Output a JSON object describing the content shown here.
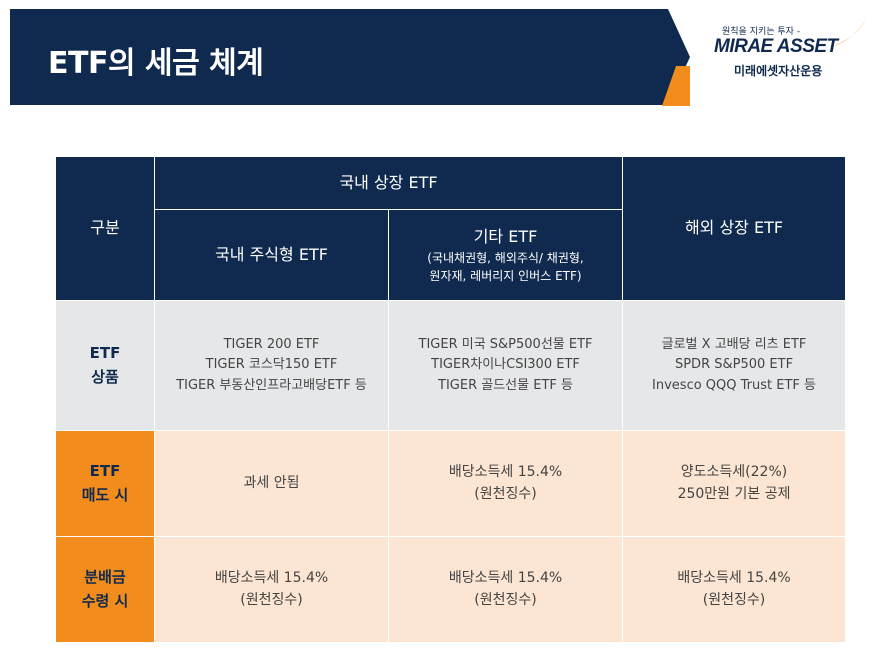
{
  "header": {
    "title": "ETF의 세금 체계"
  },
  "logo": {
    "tagline": "원칙을 지키는 투자 -",
    "brand": "MIRAE ASSET",
    "korean_name": "미래에셋자산운용"
  },
  "colors": {
    "navy": "#0f2a4e",
    "orange": "#f28d1d",
    "light_orange": "#fce5d3",
    "light_gray": "#e6e7e9"
  },
  "table": {
    "corner_label": "구분",
    "group_domestic": "국내 상장 ETF",
    "col_domestic_equity": "국내 주식형 ETF",
    "col_other": "기타 ETF",
    "col_other_note_1": "(국내채권형, 해외주식/ 채권형,",
    "col_other_note_2": "원자재, 레버리지 인버스 ETF)",
    "col_overseas": "해외 상장 ETF",
    "rows": [
      {
        "label_1": "ETF",
        "label_2": "상품",
        "domestic_equity": [
          "TIGER 200 ETF",
          "TIGER 코스닥150 ETF",
          "TIGER 부동산인프라고배당ETF 등"
        ],
        "other": [
          "TIGER 미국 S&P500선물 ETF",
          "TIGER차이나CSI300 ETF",
          "TIGER 골드선물 ETF 등"
        ],
        "overseas": [
          "글로벌 X 고배당 리츠 ETF",
          "SPDR S&P500 ETF",
          "Invesco QQQ Trust ETF 등"
        ]
      },
      {
        "label_1": "ETF",
        "label_2": "매도 시",
        "domestic_equity": [
          "과세 안됨"
        ],
        "other": [
          "배당소득세 15.4%",
          "(원천징수)"
        ],
        "overseas": [
          "양도소득세(22%)",
          "250만원 기본 공제"
        ]
      },
      {
        "label_1": "분배금",
        "label_2": "수령 시",
        "domestic_equity": [
          "배당소득세 15.4%",
          "(원천징수)"
        ],
        "other": [
          "배당소득세 15.4%",
          "(원천징수)"
        ],
        "overseas": [
          "배당소득세 15.4%",
          "(원천징수)"
        ]
      }
    ]
  }
}
